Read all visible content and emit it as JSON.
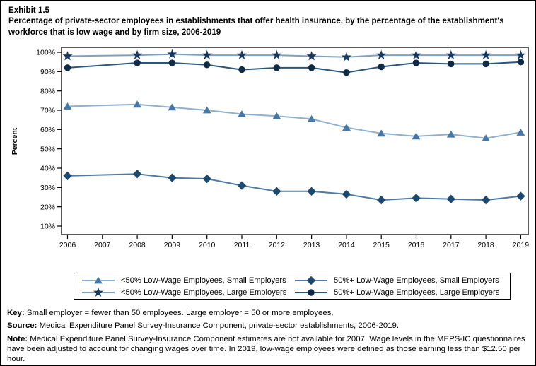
{
  "page": {
    "exhibit_label": "Exhibit 1.5",
    "title": "Percentage of private-sector employees in establishments that offer health insurance, by the percentage of the establishment's workforce that is low wage and by firm size,  2006-2019"
  },
  "chart_data": {
    "type": "line",
    "title": "",
    "xlabel": "",
    "ylabel": "Percent",
    "x_ticks": [
      2006,
      2007,
      2008,
      2009,
      2010,
      2011,
      2012,
      2013,
      2014,
      2015,
      2016,
      2017,
      2018,
      2019
    ],
    "y_ticks": [
      100,
      90,
      80,
      70,
      60,
      50,
      40,
      30,
      20,
      10
    ],
    "y_tick_suffix": "%",
    "ylim_displayed": [
      10,
      100
    ],
    "grid": false,
    "legend_position": "bottom",
    "missing_years": [
      2007
    ],
    "x": [
      2006,
      2008,
      2009,
      2010,
      2011,
      2012,
      2013,
      2014,
      2015,
      2016,
      2017,
      2018,
      2019
    ],
    "series": [
      {
        "name": "<50% Low-Wage Employees, Small Employers",
        "marker": "triangle",
        "marker_color": "#4577A7",
        "line_color": "#8FB0CE",
        "values": [
          72,
          73,
          71.5,
          70,
          68,
          67,
          65.5,
          61,
          58,
          56.5,
          57.5,
          55.5,
          58.5
        ]
      },
      {
        "name": "50%+ Low-Wage Employees, Small Employers",
        "marker": "diamond",
        "marker_color": "#1C4A6E",
        "line_color": "#4E7BA2",
        "values": [
          36,
          37,
          35,
          34.5,
          31,
          28,
          28,
          26.5,
          23.5,
          24.5,
          24,
          23.5,
          25.5
        ]
      },
      {
        "name": "<50% Low-Wage Employees, Large Employers",
        "marker": "star",
        "marker_color": "#17375E",
        "line_color": "#7FA1C1",
        "values": [
          98,
          98.5,
          99,
          98.5,
          98.5,
          98.5,
          98,
          97.5,
          98.5,
          98.5,
          98.5,
          98.5,
          98.5
        ]
      },
      {
        "name": "50%+ Low-Wage Employees, Large Employers",
        "marker": "circle",
        "marker_color": "#0F2B45",
        "line_color": "#2A567B",
        "values": [
          92,
          94.5,
          94.5,
          93.5,
          91,
          92,
          92,
          89.5,
          92.5,
          94.5,
          94,
          94,
          95
        ]
      }
    ]
  },
  "footer": {
    "key_label": "Key:",
    "key_text": " Small employer = fewer than 50 employees. Large employer = 50 or more employees.",
    "source_label": "Source:",
    "source_text": " Medical Expenditure Panel Survey-Insurance Component, private-sector establishments, 2006-2019.",
    "note_label": "Note:",
    "note_text": " Medical Expenditure Panel Survey-Insurance Component estimates are not available for 2007. Wage levels in the MEPS-IC questionnaires have been adjusted to account for changing wages over time. In 2019, low-wage employees were defined as those earning less than $12.50 per hour."
  }
}
